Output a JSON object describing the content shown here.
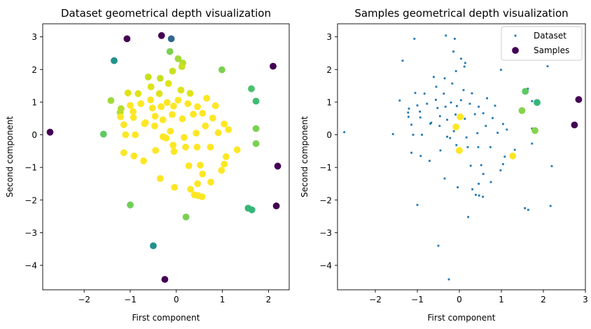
{
  "chart_data": [
    {
      "type": "scatter",
      "title": "Dataset geometrical depth visualization",
      "xlabel": "First component",
      "ylabel": "Second component",
      "xlim": [
        -2.9,
        2.45
      ],
      "ylim": [
        -4.75,
        3.4
      ],
      "xticks": [
        -2,
        -1,
        0,
        1,
        2
      ],
      "yticks": [
        -4,
        -3,
        -2,
        -1,
        0,
        1,
        2,
        3
      ],
      "colormap": "viridis",
      "color_note": "marker color encodes depth (low depth = dark purple, high depth = yellow)",
      "points": [
        {
          "x": -2.74,
          "y": 0.08,
          "c": "#440154"
        },
        {
          "x": -1.07,
          "y": 2.94,
          "c": "#440154"
        },
        {
          "x": -0.32,
          "y": 3.04,
          "c": "#440154"
        },
        {
          "x": -0.25,
          "y": -4.43,
          "c": "#440154"
        },
        {
          "x": 2.1,
          "y": 2.1,
          "c": "#440154"
        },
        {
          "x": 2.2,
          "y": -0.96,
          "c": "#440154"
        },
        {
          "x": 2.17,
          "y": -2.18,
          "c": "#440154"
        },
        {
          "x": -0.11,
          "y": 2.94,
          "c": "#31688e"
        },
        {
          "x": -1.35,
          "y": 2.27,
          "c": "#21918c"
        },
        {
          "x": -0.5,
          "y": -3.4,
          "c": "#21918c"
        },
        {
          "x": 1.56,
          "y": -2.25,
          "c": "#35b779"
        },
        {
          "x": 1.64,
          "y": -2.3,
          "c": "#35b779"
        },
        {
          "x": 1.73,
          "y": 1.03,
          "c": "#3fbc73"
        },
        {
          "x": 1.63,
          "y": 1.41,
          "c": "#4ac16d"
        },
        {
          "x": -1.58,
          "y": 0.02,
          "c": "#5ec962"
        },
        {
          "x": -1.0,
          "y": -2.15,
          "c": "#6ece58"
        },
        {
          "x": 0.99,
          "y": 1.99,
          "c": "#7ad151"
        },
        {
          "x": 1.73,
          "y": 0.19,
          "c": "#7ad151"
        },
        {
          "x": 1.73,
          "y": -0.27,
          "c": "#7ad151"
        },
        {
          "x": 0.21,
          "y": -2.52,
          "c": "#7ad151"
        },
        {
          "x": -0.14,
          "y": 2.55,
          "c": "#7ad151"
        },
        {
          "x": -1.42,
          "y": 1.05,
          "c": "#a0da39"
        },
        {
          "x": 0.04,
          "y": 2.33,
          "c": "#a0da39"
        },
        {
          "x": -1.2,
          "y": 0.8,
          "c": "#b5de2b"
        },
        {
          "x": 0.14,
          "y": 2.2,
          "c": "#b5de2b"
        },
        {
          "x": -1.22,
          "y": 0.68,
          "c": "#b5de2b"
        },
        {
          "x": -0.61,
          "y": 1.77,
          "c": "#c8e020"
        },
        {
          "x": -0.35,
          "y": 1.73,
          "c": "#c8e020"
        },
        {
          "x": -0.08,
          "y": 1.95,
          "c": "#c8e020"
        },
        {
          "x": 0.12,
          "y": 2.09,
          "c": "#c8e020"
        },
        {
          "x": -1.05,
          "y": 1.28,
          "c": "#dde318"
        },
        {
          "x": -0.83,
          "y": 1.26,
          "c": "#dde318"
        },
        {
          "x": -0.55,
          "y": 1.47,
          "c": "#dde318"
        },
        {
          "x": -0.37,
          "y": 1.26,
          "c": "#dde318"
        },
        {
          "x": -0.17,
          "y": 1.57,
          "c": "#dde318"
        },
        {
          "x": 0.1,
          "y": 1.37,
          "c": "#dde318"
        },
        {
          "x": 0.3,
          "y": 1.27,
          "c": "#dde318"
        },
        {
          "x": -1.21,
          "y": 0.55,
          "c": "#fde725"
        },
        {
          "x": -1.0,
          "y": 0.9,
          "c": "#fde725"
        },
        {
          "x": -0.94,
          "y": 0.71,
          "c": "#fde725"
        },
        {
          "x": -0.77,
          "y": 0.95,
          "c": "#fde725"
        },
        {
          "x": -0.56,
          "y": 1.07,
          "c": "#fde725"
        },
        {
          "x": -0.52,
          "y": 0.82,
          "c": "#fde725"
        },
        {
          "x": -0.33,
          "y": 0.86,
          "c": "#fde725"
        },
        {
          "x": -0.2,
          "y": 0.99,
          "c": "#fde725"
        },
        {
          "x": -0.06,
          "y": 0.88,
          "c": "#fde725"
        },
        {
          "x": 0.04,
          "y": 1.06,
          "c": "#fde725"
        },
        {
          "x": 0.25,
          "y": 0.95,
          "c": "#fde725"
        },
        {
          "x": 0.46,
          "y": 0.86,
          "c": "#fde725"
        },
        {
          "x": 0.66,
          "y": 1.12,
          "c": "#fde725"
        },
        {
          "x": 0.85,
          "y": 0.89,
          "c": "#fde725"
        },
        {
          "x": -1.14,
          "y": 0.31,
          "c": "#fde725"
        },
        {
          "x": -0.93,
          "y": 0.53,
          "c": "#fde725"
        },
        {
          "x": -0.67,
          "y": 0.37,
          "c": "#fde725"
        },
        {
          "x": -0.46,
          "y": 0.57,
          "c": "#fde725"
        },
        {
          "x": -0.29,
          "y": 0.46,
          "c": "#fde725"
        },
        {
          "x": -0.09,
          "y": 0.62,
          "c": "#fde725"
        },
        {
          "x": 0.13,
          "y": 0.49,
          "c": "#fde725"
        },
        {
          "x": 0.37,
          "y": 0.63,
          "c": "#fde725"
        },
        {
          "x": 0.57,
          "y": 0.66,
          "c": "#fde725"
        },
        {
          "x": 0.79,
          "y": 0.51,
          "c": "#fde725"
        },
        {
          "x": 1.04,
          "y": 0.33,
          "c": "#fde725"
        },
        {
          "x": -1.1,
          "y": 0.0,
          "c": "#fde725"
        },
        {
          "x": -0.89,
          "y": 0.0,
          "c": "#fde725"
        },
        {
          "x": -0.69,
          "y": 0.34,
          "c": "#fde725"
        },
        {
          "x": -0.47,
          "y": 0.27,
          "c": "#fde725"
        },
        {
          "x": -0.29,
          "y": -0.06,
          "c": "#fde725"
        },
        {
          "x": -0.13,
          "y": 0.11,
          "c": "#fde725"
        },
        {
          "x": 0.17,
          "y": -0.08,
          "c": "#fde725"
        },
        {
          "x": 0.43,
          "y": 0.05,
          "c": "#fde725"
        },
        {
          "x": 0.63,
          "y": 0.27,
          "c": "#fde725"
        },
        {
          "x": 0.91,
          "y": 0.06,
          "c": "#fde725"
        },
        {
          "x": 1.13,
          "y": 0.16,
          "c": "#fde725"
        },
        {
          "x": -1.14,
          "y": -0.55,
          "c": "#fde725"
        },
        {
          "x": -0.92,
          "y": -0.65,
          "c": "#fde725"
        },
        {
          "x": -0.71,
          "y": -0.8,
          "c": "#fde725"
        },
        {
          "x": -0.45,
          "y": -0.48,
          "c": "#fde725"
        },
        {
          "x": -0.22,
          "y": -0.1,
          "c": "#fde725"
        },
        {
          "x": -0.07,
          "y": -0.32,
          "c": "#fde725"
        },
        {
          "x": -0.05,
          "y": -0.51,
          "c": "#fde725"
        },
        {
          "x": 0.2,
          "y": -0.38,
          "c": "#fde725"
        },
        {
          "x": 0.45,
          "y": -0.38,
          "c": "#fde725"
        },
        {
          "x": 0.74,
          "y": -0.38,
          "c": "#fde725"
        },
        {
          "x": 1.08,
          "y": -0.67,
          "c": "#fde725"
        },
        {
          "x": 1.32,
          "y": -0.46,
          "c": "#fde725"
        },
        {
          "x": -0.35,
          "y": -1.34,
          "c": "#fde725"
        },
        {
          "x": 0.27,
          "y": -0.95,
          "c": "#fde725"
        },
        {
          "x": 0.52,
          "y": -0.93,
          "c": "#fde725"
        },
        {
          "x": 0.57,
          "y": -1.2,
          "c": "#fde725"
        },
        {
          "x": 1.04,
          "y": -0.9,
          "c": "#fde725"
        },
        {
          "x": 0.98,
          "y": -1.09,
          "c": "#fde725"
        },
        {
          "x": -0.04,
          "y": -1.61,
          "c": "#fde725"
        },
        {
          "x": 0.31,
          "y": -1.67,
          "c": "#fde725"
        },
        {
          "x": 0.46,
          "y": -1.5,
          "c": "#fde725"
        },
        {
          "x": 0.75,
          "y": -1.45,
          "c": "#fde725"
        },
        {
          "x": 0.39,
          "y": -1.84,
          "c": "#fde725"
        },
        {
          "x": 0.47,
          "y": -1.86,
          "c": "#fde725"
        },
        {
          "x": 0.56,
          "y": -1.9,
          "c": "#fde725"
        }
      ]
    },
    {
      "type": "scatter",
      "title": "Samples geometrical depth visualization",
      "xlabel": "First component",
      "ylabel": "Second component",
      "xlim": [
        -2.9,
        3.0
      ],
      "ylim": [
        -4.75,
        3.4
      ],
      "xticks": [
        -2,
        -1,
        0,
        1,
        2,
        3
      ],
      "yticks": [
        -4,
        -3,
        -2,
        -1,
        0,
        1,
        2,
        3
      ],
      "legend": {
        "position": "top-right",
        "entries": [
          "Dataset",
          "Samples"
        ]
      },
      "series": [
        {
          "name": "Dataset",
          "color": "#1f77b4",
          "marker": "small-square",
          "points": [
            {
              "x": -2.74,
              "y": 0.08
            },
            {
              "x": -1.07,
              "y": 2.94
            },
            {
              "x": -0.32,
              "y": 3.04
            },
            {
              "x": -0.25,
              "y": -4.43
            },
            {
              "x": 2.1,
              "y": 2.1
            },
            {
              "x": 2.2,
              "y": -0.96
            },
            {
              "x": 2.17,
              "y": -2.18
            },
            {
              "x": -0.11,
              "y": 2.94
            },
            {
              "x": -1.35,
              "y": 2.27
            },
            {
              "x": -0.5,
              "y": -3.4
            },
            {
              "x": 1.56,
              "y": -2.25
            },
            {
              "x": 1.64,
              "y": -2.3
            },
            {
              "x": 1.73,
              "y": 1.03
            },
            {
              "x": 1.63,
              "y": 1.41
            },
            {
              "x": -1.58,
              "y": 0.02
            },
            {
              "x": -1.0,
              "y": -2.15
            },
            {
              "x": 0.99,
              "y": 1.99
            },
            {
              "x": 1.73,
              "y": 0.19
            },
            {
              "x": 1.73,
              "y": -0.27
            },
            {
              "x": 0.21,
              "y": -2.52
            },
            {
              "x": -0.14,
              "y": 2.55
            },
            {
              "x": -1.42,
              "y": 1.05
            },
            {
              "x": 0.04,
              "y": 2.33
            },
            {
              "x": -1.2,
              "y": 0.8
            },
            {
              "x": 0.14,
              "y": 2.2
            },
            {
              "x": -1.22,
              "y": 0.68
            },
            {
              "x": -0.61,
              "y": 1.77
            },
            {
              "x": -0.35,
              "y": 1.73
            },
            {
              "x": -0.08,
              "y": 1.95
            },
            {
              "x": 0.12,
              "y": 2.09
            },
            {
              "x": -1.05,
              "y": 1.28
            },
            {
              "x": -0.83,
              "y": 1.26
            },
            {
              "x": -0.55,
              "y": 1.47
            },
            {
              "x": -0.37,
              "y": 1.26
            },
            {
              "x": -0.17,
              "y": 1.57
            },
            {
              "x": 0.1,
              "y": 1.37
            },
            {
              "x": 0.3,
              "y": 1.27
            },
            {
              "x": -1.21,
              "y": 0.55
            },
            {
              "x": -1.0,
              "y": 0.9
            },
            {
              "x": -0.94,
              "y": 0.71
            },
            {
              "x": -0.77,
              "y": 0.95
            },
            {
              "x": -0.56,
              "y": 1.07
            },
            {
              "x": -0.52,
              "y": 0.82
            },
            {
              "x": -0.33,
              "y": 0.86
            },
            {
              "x": -0.2,
              "y": 0.99
            },
            {
              "x": -0.06,
              "y": 0.88
            },
            {
              "x": 0.04,
              "y": 1.06
            },
            {
              "x": 0.25,
              "y": 0.95
            },
            {
              "x": 0.46,
              "y": 0.86
            },
            {
              "x": 0.66,
              "y": 1.12
            },
            {
              "x": 0.85,
              "y": 0.89
            },
            {
              "x": -1.14,
              "y": 0.31
            },
            {
              "x": -0.93,
              "y": 0.53
            },
            {
              "x": -0.67,
              "y": 0.37
            },
            {
              "x": -0.46,
              "y": 0.57
            },
            {
              "x": -0.29,
              "y": 0.46
            },
            {
              "x": -0.09,
              "y": 0.62
            },
            {
              "x": 0.13,
              "y": 0.49
            },
            {
              "x": 0.37,
              "y": 0.63
            },
            {
              "x": 0.57,
              "y": 0.66
            },
            {
              "x": 0.79,
              "y": 0.51
            },
            {
              "x": 1.04,
              "y": 0.33
            },
            {
              "x": -1.1,
              "y": 0.0
            },
            {
              "x": -0.89,
              "y": 0.0
            },
            {
              "x": -0.69,
              "y": 0.34
            },
            {
              "x": -0.47,
              "y": 0.27
            },
            {
              "x": -0.29,
              "y": -0.06
            },
            {
              "x": -0.13,
              "y": 0.11
            },
            {
              "x": 0.17,
              "y": -0.08
            },
            {
              "x": 0.43,
              "y": 0.05
            },
            {
              "x": 0.63,
              "y": 0.27
            },
            {
              "x": 0.91,
              "y": 0.06
            },
            {
              "x": 1.13,
              "y": 0.16
            },
            {
              "x": -1.14,
              "y": -0.55
            },
            {
              "x": -0.92,
              "y": -0.65
            },
            {
              "x": -0.71,
              "y": -0.8
            },
            {
              "x": -0.45,
              "y": -0.48
            },
            {
              "x": -0.22,
              "y": -0.1
            },
            {
              "x": -0.07,
              "y": -0.32
            },
            {
              "x": -0.05,
              "y": -0.51
            },
            {
              "x": 0.2,
              "y": -0.38
            },
            {
              "x": 0.45,
              "y": -0.38
            },
            {
              "x": 0.74,
              "y": -0.38
            },
            {
              "x": 1.08,
              "y": -0.67
            },
            {
              "x": 1.32,
              "y": -0.46
            },
            {
              "x": -0.35,
              "y": -1.34
            },
            {
              "x": 0.27,
              "y": -0.95
            },
            {
              "x": 0.52,
              "y": -0.93
            },
            {
              "x": 0.57,
              "y": -1.2
            },
            {
              "x": 1.04,
              "y": -0.9
            },
            {
              "x": 0.98,
              "y": -1.09
            },
            {
              "x": -0.04,
              "y": -1.61
            },
            {
              "x": 0.31,
              "y": -1.67
            },
            {
              "x": 0.46,
              "y": -1.5
            },
            {
              "x": 0.75,
              "y": -1.45
            },
            {
              "x": 0.39,
              "y": -1.84
            },
            {
              "x": 0.47,
              "y": -1.86
            },
            {
              "x": 0.56,
              "y": -1.9
            }
          ]
        },
        {
          "name": "Samples",
          "marker": "circle",
          "colormap": "viridis",
          "points": [
            {
              "x": 2.84,
              "y": 1.08,
              "c": "#440154"
            },
            {
              "x": 2.74,
              "y": 0.3,
              "c": "#440154"
            },
            {
              "x": 1.85,
              "y": 0.99,
              "c": "#35b779"
            },
            {
              "x": 1.57,
              "y": 1.33,
              "c": "#5ec962"
            },
            {
              "x": 1.49,
              "y": 0.74,
              "c": "#84d44b"
            },
            {
              "x": 1.8,
              "y": 0.13,
              "c": "#84d44b"
            },
            {
              "x": 0.02,
              "y": 0.55,
              "c": "#fde725"
            },
            {
              "x": -0.08,
              "y": 0.24,
              "c": "#fde725"
            },
            {
              "x": 0.0,
              "y": -0.48,
              "c": "#fde725"
            },
            {
              "x": 1.27,
              "y": -0.65,
              "c": "#fde725"
            }
          ]
        }
      ]
    }
  ]
}
